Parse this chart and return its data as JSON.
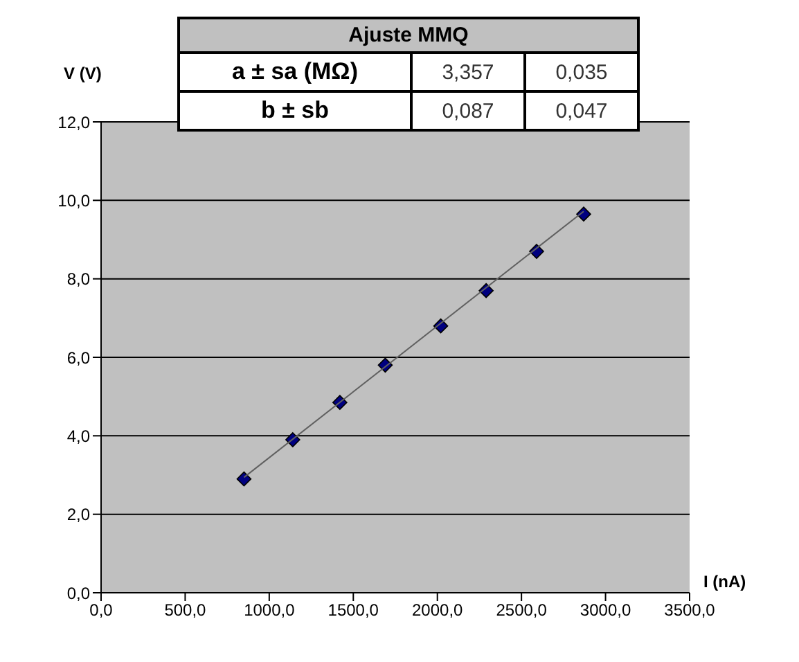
{
  "chart_data": {
    "type": "scatter",
    "xlabel": "I (nA)",
    "ylabel": "V (V)",
    "series": [
      {
        "color": "#000080",
        "marker": "diamond",
        "x": [
          850,
          1140,
          1420,
          1690,
          2020,
          2290,
          2590,
          2870
        ],
        "values": [
          2.9,
          3.9,
          4.85,
          5.8,
          6.8,
          7.7,
          8.7,
          9.65
        ]
      },
      {
        "type": "line",
        "color": "#606060",
        "marker": "none",
        "x": [
          850,
          2870
        ],
        "values": [
          2.94,
          9.72
        ]
      }
    ],
    "xlim": [
      0,
      3500
    ],
    "xticks": [
      {
        "value": 0,
        "label": "0,0"
      },
      {
        "value": 500,
        "label": "500,0"
      },
      {
        "value": 1000,
        "label": "1000,0"
      },
      {
        "value": 1500,
        "label": "1500,0"
      },
      {
        "value": 2000,
        "label": "2000,0"
      },
      {
        "value": 2500,
        "label": "2500,0"
      },
      {
        "value": 3000,
        "label": "3000,0"
      },
      {
        "value": 3500,
        "label": "3500,0"
      }
    ],
    "ylim": [
      0,
      12
    ],
    "yticks": [
      {
        "value": 0,
        "label": "0,0"
      },
      {
        "value": 2,
        "label": "2,0"
      },
      {
        "value": 4,
        "label": "4,0"
      },
      {
        "value": 6,
        "label": "6,0"
      },
      {
        "value": 8,
        "label": "8,0"
      },
      {
        "value": 10,
        "label": "10,0"
      },
      {
        "value": 12,
        "label": "12,0"
      }
    ],
    "grid": "y",
    "legend": false,
    "annotations": [
      "Ajuste MMQ",
      "a ± sa (MΩ)",
      "3,357",
      "0,035",
      "b ± sb",
      "0,087",
      "0,047"
    ]
  }
}
